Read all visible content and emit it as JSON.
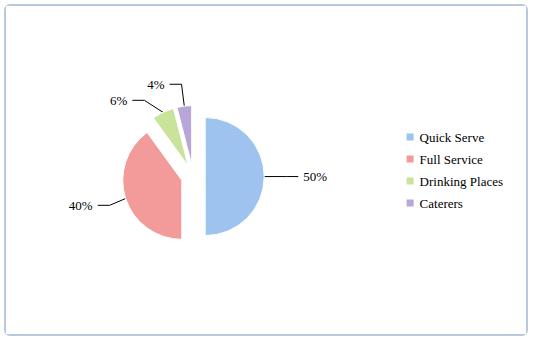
{
  "chart_data": {
    "type": "pie",
    "categories": [
      "Quick Serve",
      "Full Service",
      "Drinking Places",
      "Caterers"
    ],
    "values": [
      50,
      40,
      6,
      4
    ],
    "value_labels": [
      "50%",
      "40%",
      "6%",
      "4%"
    ],
    "colors": [
      "#9ec3ee",
      "#f29b9a",
      "#c9e39a",
      "#b9a6d9"
    ],
    "data_labels": true,
    "legend": "right"
  }
}
